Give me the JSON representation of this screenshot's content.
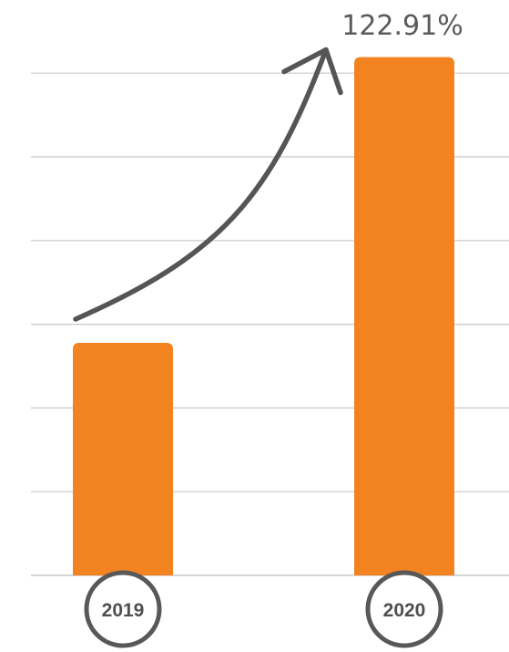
{
  "chart_data": {
    "type": "bar",
    "categories": [
      "2019",
      "2020"
    ],
    "values": [
      100,
      222.91
    ],
    "ylim": [
      0,
      260
    ],
    "grid": true,
    "annotations": [
      {
        "text": "122.91%",
        "from": "2019",
        "to": "2020"
      }
    ],
    "colors": {
      "bar": "#f38321",
      "grid": "#c8c8c8",
      "arrow": "#555555",
      "ring": "#585858"
    }
  }
}
